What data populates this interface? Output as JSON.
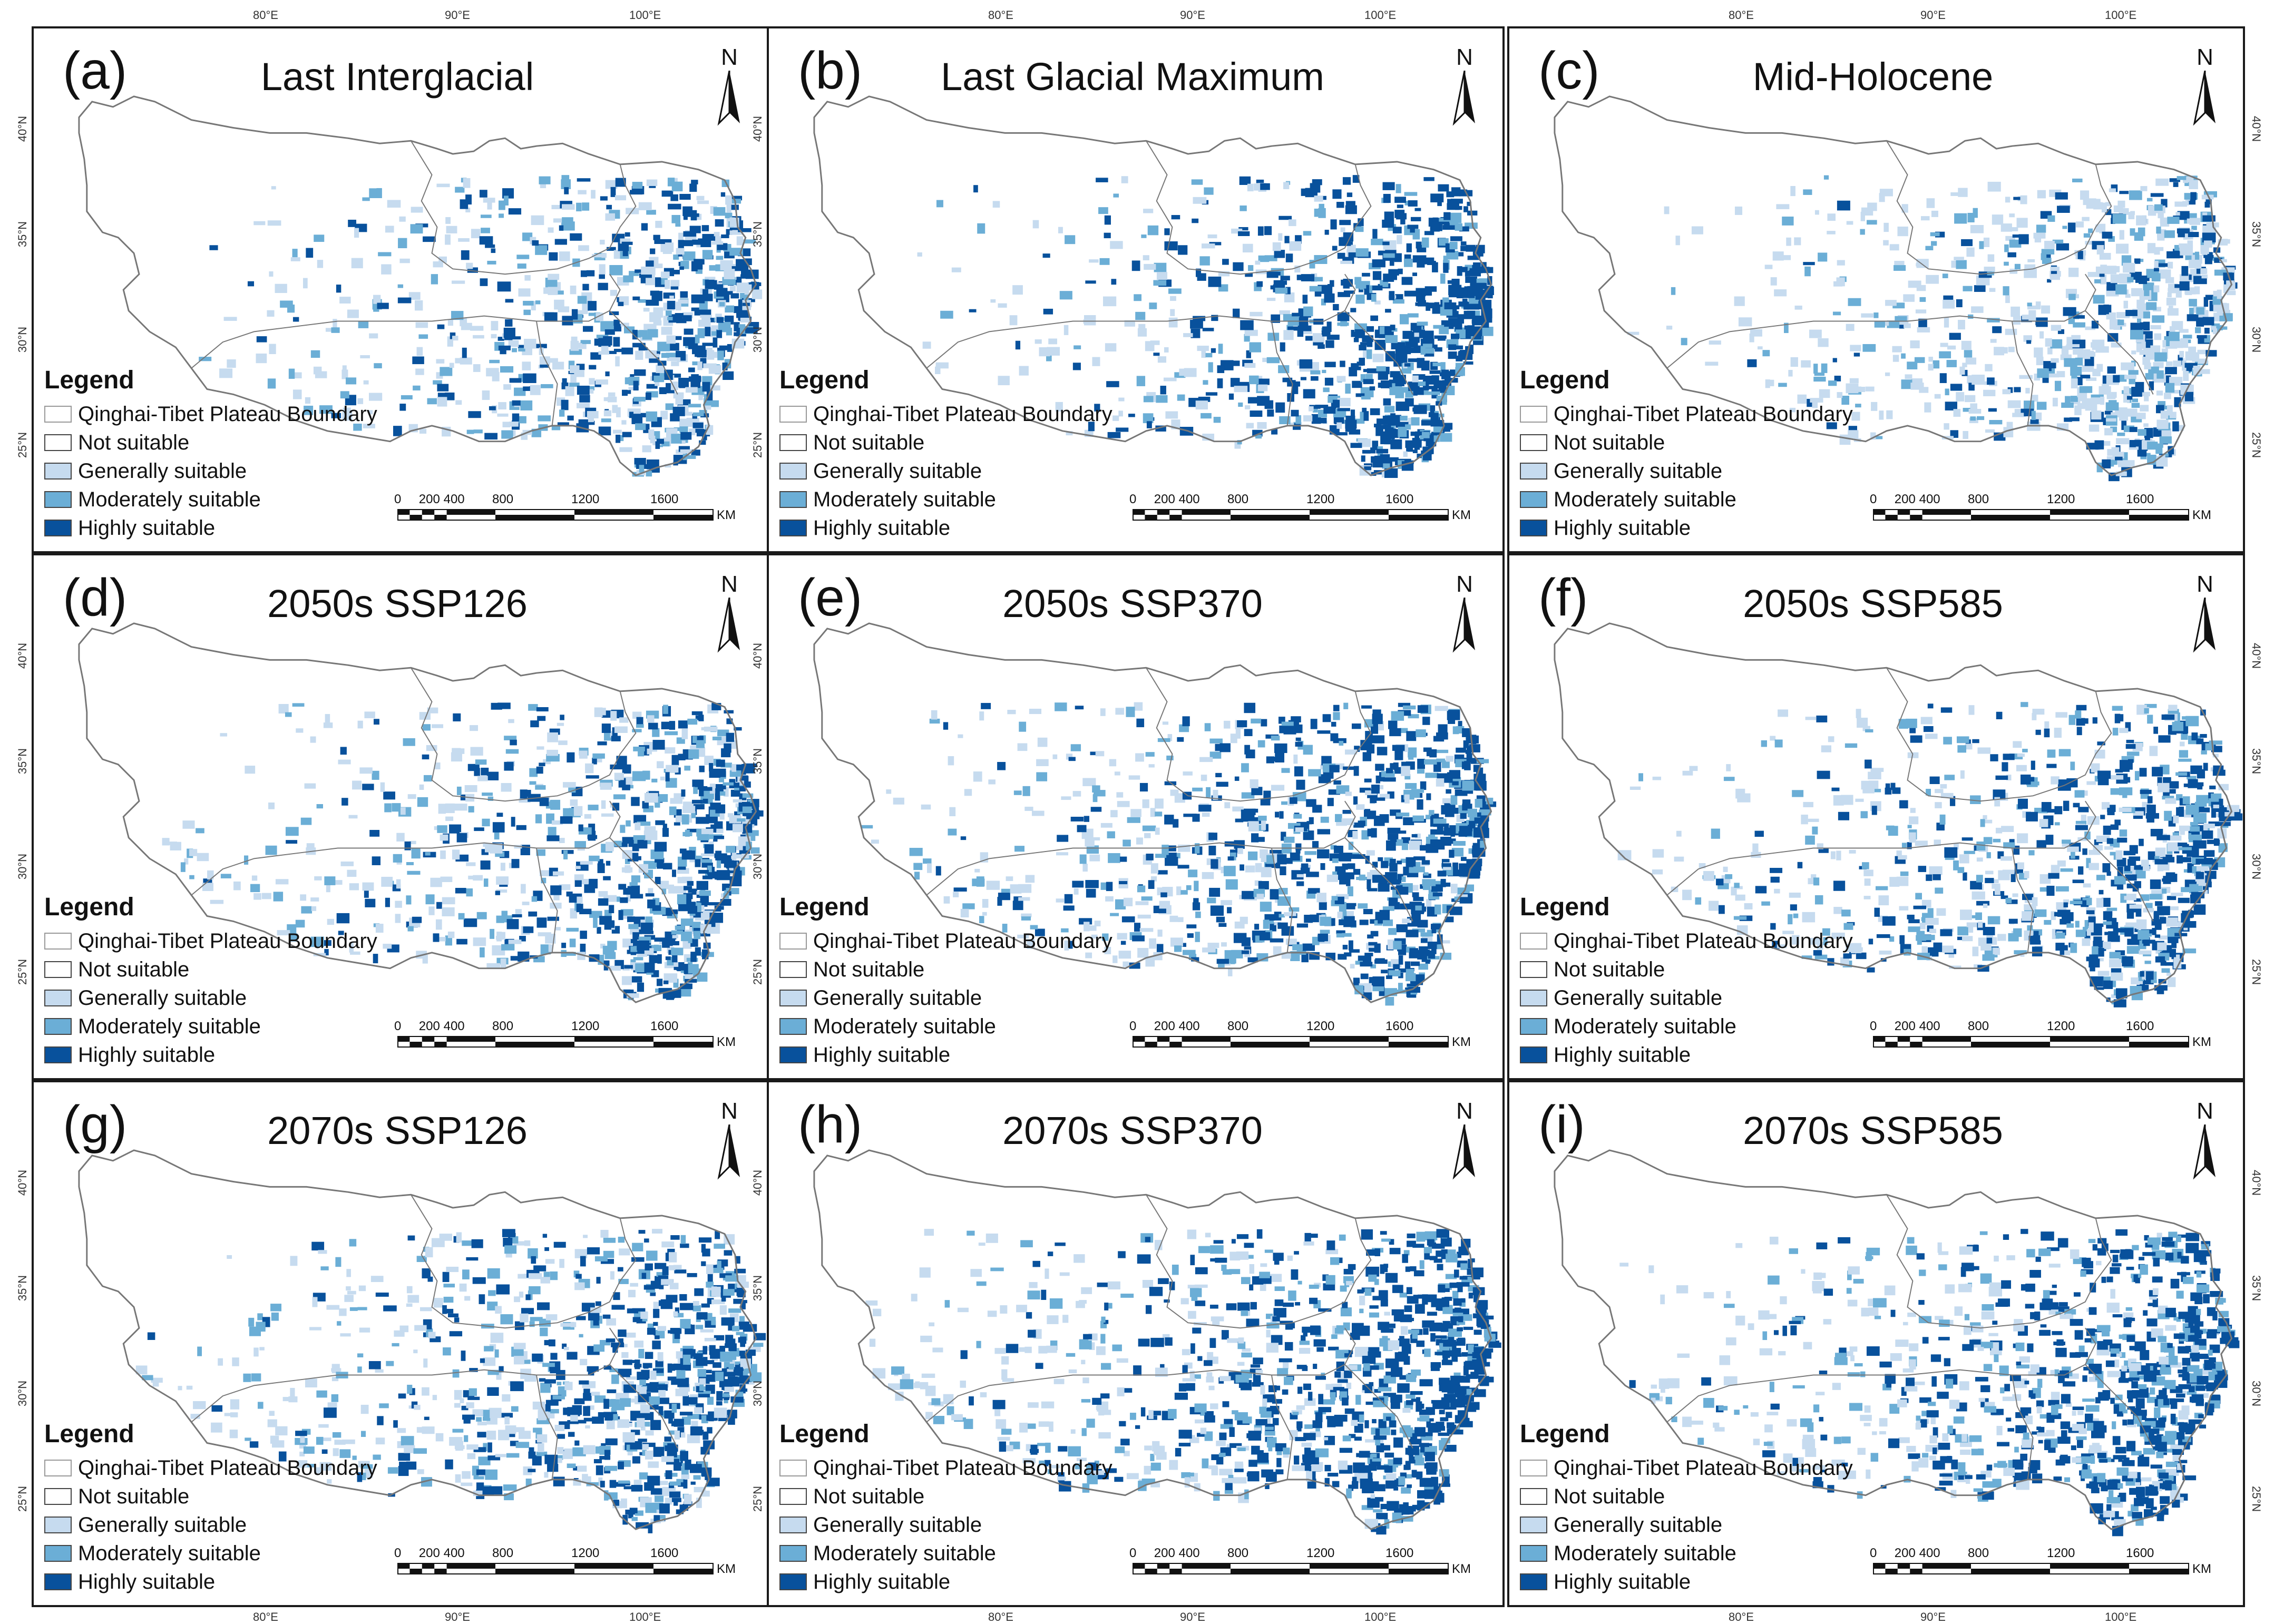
{
  "figure": {
    "legend": {
      "title": "Legend",
      "items": [
        {
          "label": "Qinghai-Tibet Plateau Boundary",
          "color": "#ffffff"
        },
        {
          "label": "Not suitable",
          "color": "#ffffff"
        },
        {
          "label": "Generally suitable",
          "color": "#c6dbef"
        },
        {
          "label": "Moderately suitable",
          "color": "#6baed6"
        },
        {
          "label": "Highly suitable",
          "color": "#08519c"
        }
      ]
    },
    "north_label": "N",
    "scale": {
      "ticks": [
        "0",
        "200",
        "400",
        "800",
        "1200",
        "1600"
      ],
      "unit": "KM"
    },
    "lon_ticks": [
      "80°E",
      "90°E",
      "100°E"
    ],
    "lat_ticks": [
      "40°N",
      "35°N",
      "30°N",
      "25°N"
    ],
    "panels": [
      {
        "id": "(a)",
        "title": "Last Interglacial",
        "extent": 0.35,
        "light": 0.5,
        "dark": 0.45,
        "west": 0.05
      },
      {
        "id": "(b)",
        "title": "Last Glacial Maximum",
        "extent": 0.45,
        "light": 0.3,
        "dark": 0.75,
        "west": 0.1
      },
      {
        "id": "(c)",
        "title": "Mid-Holocene",
        "extent": 0.5,
        "light": 0.75,
        "dark": 0.25,
        "west": 0.2
      },
      {
        "id": "(d)",
        "title": "2050s SSP126",
        "extent": 0.6,
        "light": 0.5,
        "dark": 0.55,
        "west": 0.5
      },
      {
        "id": "(e)",
        "title": "2050s SSP370",
        "extent": 0.75,
        "light": 0.45,
        "dark": 0.7,
        "west": 0.65
      },
      {
        "id": "(f)",
        "title": "2050s SSP585",
        "extent": 0.6,
        "light": 0.5,
        "dark": 0.55,
        "west": 0.5
      },
      {
        "id": "(g)",
        "title": "2070s SSP126",
        "extent": 0.6,
        "light": 0.5,
        "dark": 0.55,
        "west": 0.5
      },
      {
        "id": "(h)",
        "title": "2070s SSP370",
        "extent": 0.8,
        "light": 0.4,
        "dark": 0.75,
        "west": 0.7
      },
      {
        "id": "(i)",
        "title": "2070s SSP585",
        "extent": 0.7,
        "light": 0.45,
        "dark": 0.65,
        "west": 0.55
      }
    ]
  }
}
